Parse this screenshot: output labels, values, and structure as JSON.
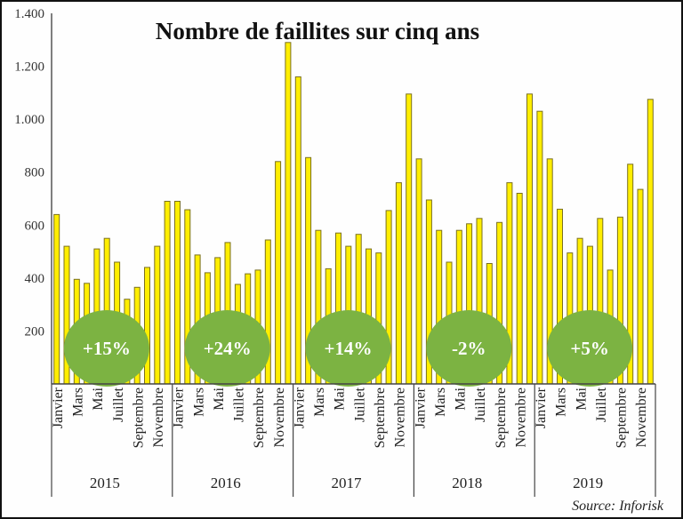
{
  "chart_data": {
    "type": "bar",
    "title": "Nombre de faillites sur cinq ans",
    "source": "Source: Inforisk",
    "xlabel": "",
    "ylabel": "",
    "ylim": [
      0,
      1400
    ],
    "yticks": [
      200,
      400,
      600,
      800,
      1000,
      1200,
      1400
    ],
    "ytick_labels": [
      "200",
      "400",
      "600",
      "800",
      "1.000",
      "1.200",
      "1.400"
    ],
    "grid": false,
    "bar_color": "#ffee00",
    "bar_edge_color": "#7a7020",
    "badge_color": "#7cb342",
    "month_labels_shown": [
      "Janvier",
      "Mars",
      "Mai",
      "Juillet",
      "Septembre",
      "Novembre"
    ],
    "month_label_indices": [
      0,
      2,
      4,
      6,
      8,
      10
    ],
    "groups": [
      {
        "year": "2015",
        "change": "+15%",
        "values": [
          640,
          520,
          395,
          380,
          510,
          550,
          460,
          320,
          365,
          440,
          520,
          690
        ]
      },
      {
        "year": "2016",
        "change": "+24%",
        "values": [
          690,
          658,
          487,
          420,
          477,
          534,
          376,
          416,
          430,
          544,
          840,
          1290
        ]
      },
      {
        "year": "2017",
        "change": "+14%",
        "values": [
          1160,
          855,
          580,
          435,
          570,
          520,
          565,
          510,
          495,
          655,
          760,
          1095
        ]
      },
      {
        "year": "2018",
        "change": "-2%",
        "values": [
          850,
          695,
          580,
          460,
          580,
          605,
          625,
          455,
          610,
          760,
          720,
          1095
        ]
      },
      {
        "year": "2019",
        "change": "+5%",
        "values": [
          1030,
          850,
          660,
          495,
          550,
          520,
          625,
          430,
          630,
          830,
          735,
          1075
        ]
      }
    ]
  }
}
